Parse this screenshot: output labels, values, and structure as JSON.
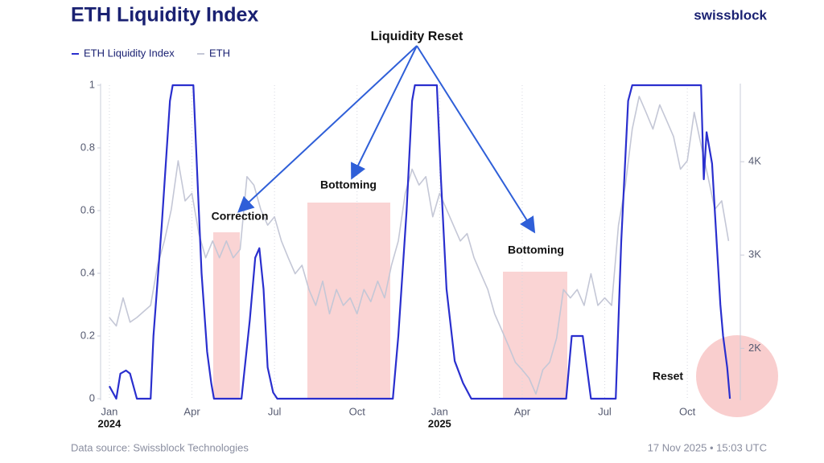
{
  "chart_data": {
    "type": "line",
    "title": "ETH Liquidity Index",
    "brand": "swissblock",
    "source": "Data source: Swissblock Technologies",
    "timestamp": "17 Nov 2025 • 15:03 UTC",
    "xlim": [
      -0.32,
      22.78
    ],
    "xticks": [
      {
        "value": 0,
        "label": "Jan"
      },
      {
        "value": 3,
        "label": "Apr"
      },
      {
        "value": 6,
        "label": "Jul"
      },
      {
        "value": 9,
        "label": "Oct"
      },
      {
        "value": 12,
        "label": "Jan"
      },
      {
        "value": 15,
        "label": "Apr"
      },
      {
        "value": 18,
        "label": "Jul"
      },
      {
        "value": 21,
        "label": "Oct"
      }
    ],
    "x_year_labels": [
      {
        "value": 0,
        "label": "2024"
      },
      {
        "value": 12,
        "label": "2025"
      }
    ],
    "ylim": [
      0,
      1
    ],
    "yticks": [
      0,
      0.2,
      0.4,
      0.6,
      0.8,
      1
    ],
    "y2lim": [
      1460,
      4820
    ],
    "y2ticks": [
      {
        "value": 2000,
        "label": "2K"
      },
      {
        "value": 3000,
        "label": "3K"
      },
      {
        "value": 4000,
        "label": "4K"
      }
    ],
    "annotations": [
      "Liquidity Reset",
      "Correction",
      "Bottoming",
      "Bottoming",
      "Reset"
    ],
    "series": [
      {
        "name": "ETH Liquidity Index",
        "color": "#2a2fce",
        "x": [
          0,
          0.25,
          0.4,
          0.6,
          0.75,
          1,
          1.5,
          1.6,
          1.9,
          2.2,
          2.3,
          3.05,
          3.2,
          3.35,
          3.55,
          3.7,
          3.8,
          4.8,
          5.1,
          5.3,
          5.45,
          5.6,
          5.75,
          5.95,
          6.1,
          10.3,
          10.5,
          10.8,
          11,
          11.1,
          11.9,
          12.05,
          12.25,
          12.55,
          12.85,
          13.15,
          16.6,
          16.8,
          17.2,
          17.5,
          18.4,
          18.6,
          18.85,
          19,
          21.5,
          21.6,
          21.7,
          21.9,
          22,
          22.2,
          22.3,
          22.45,
          22.55
        ],
        "values": [
          0.04,
          0,
          0.08,
          0.09,
          0.08,
          0,
          0,
          0.2,
          0.55,
          0.95,
          1,
          1,
          0.7,
          0.4,
          0.15,
          0.05,
          0,
          0,
          0.25,
          0.45,
          0.48,
          0.35,
          0.1,
          0.02,
          0,
          0,
          0.2,
          0.6,
          0.95,
          1,
          1,
          0.7,
          0.35,
          0.12,
          0.05,
          0,
          0,
          0.2,
          0.2,
          0,
          0,
          0.5,
          0.95,
          1,
          1,
          0.7,
          0.85,
          0.75,
          0.6,
          0.3,
          0.2,
          0.1,
          0
        ]
      },
      {
        "name": "ETH",
        "color": "#c4c7d6",
        "axis": "y2",
        "x": [
          0,
          0.25,
          0.5,
          0.75,
          1,
          1.5,
          1.75,
          2,
          2.25,
          2.5,
          2.75,
          3,
          3.25,
          3.5,
          3.75,
          4,
          4.25,
          4.5,
          4.75,
          5,
          5.25,
          5.5,
          5.75,
          6,
          6.25,
          6.5,
          6.75,
          7,
          7.25,
          7.5,
          7.75,
          8,
          8.25,
          8.5,
          8.75,
          9,
          9.25,
          9.5,
          9.75,
          10,
          10.25,
          10.5,
          10.75,
          11,
          11.25,
          11.5,
          11.75,
          12,
          12.25,
          12.5,
          12.75,
          13,
          13.25,
          13.5,
          13.75,
          14,
          14.25,
          14.5,
          14.75,
          15,
          15.25,
          15.5,
          15.75,
          16,
          16.25,
          16.5,
          16.75,
          17,
          17.25,
          17.5,
          17.75,
          18,
          18.25,
          18.5,
          18.75,
          19,
          19.25,
          19.5,
          19.75,
          20,
          20.25,
          20.5,
          20.75,
          21,
          21.25,
          21.5,
          21.75,
          22,
          22.25,
          22.5
        ],
        "values": [
          2330,
          2240,
          2540,
          2280,
          2330,
          2460,
          2890,
          3150,
          3490,
          4010,
          3580,
          3660,
          3230,
          2970,
          3150,
          2970,
          3150,
          2970,
          3060,
          3840,
          3750,
          3490,
          3320,
          3410,
          3150,
          2970,
          2800,
          2890,
          2630,
          2460,
          2720,
          2370,
          2630,
          2460,
          2540,
          2370,
          2630,
          2500,
          2720,
          2540,
          2890,
          3150,
          3660,
          3920,
          3750,
          3840,
          3410,
          3660,
          3490,
          3320,
          3150,
          3230,
          2970,
          2800,
          2630,
          2370,
          2200,
          2030,
          1850,
          1770,
          1680,
          1510,
          1770,
          1850,
          2110,
          2630,
          2540,
          2630,
          2460,
          2800,
          2460,
          2540,
          2460,
          3320,
          3750,
          4350,
          4700,
          4530,
          4350,
          4610,
          4440,
          4270,
          3920,
          4010,
          4530,
          4180,
          3840,
          3490,
          3580,
          3150
        ]
      }
    ]
  }
}
